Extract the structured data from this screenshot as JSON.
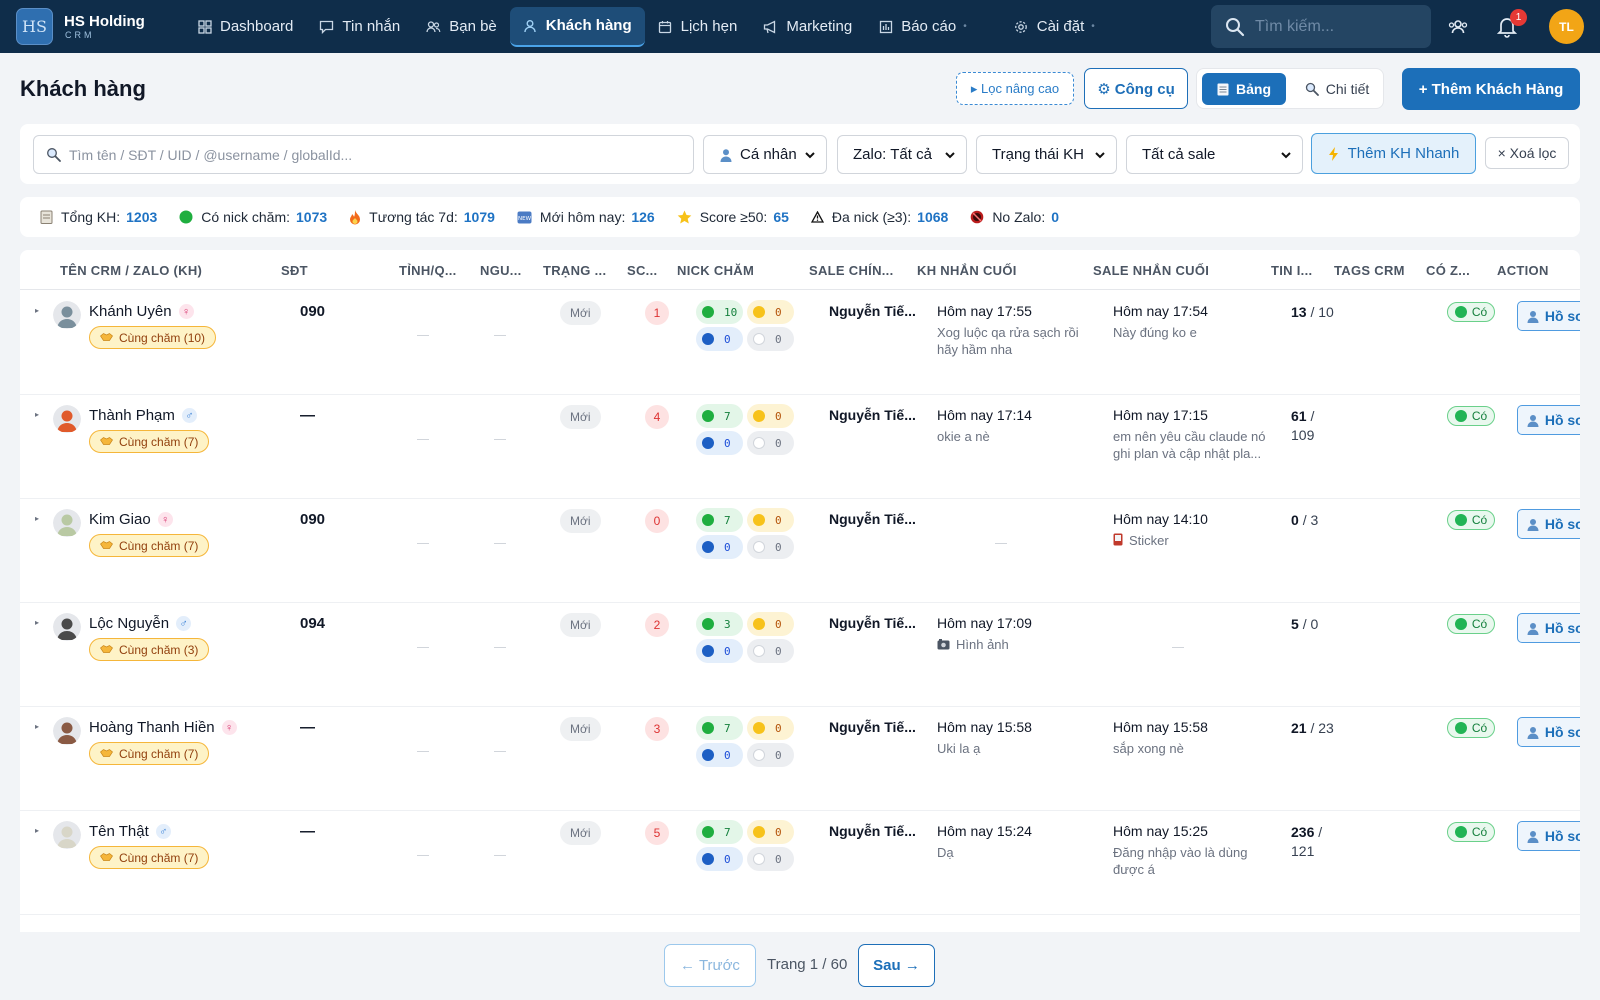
{
  "app": {
    "logo_mark": "HS",
    "name": "HS Holding",
    "sub": "CRM"
  },
  "nav": [
    {
      "label": "Dashboard",
      "icon": "grid-icon"
    },
    {
      "label": "Tin nhắn",
      "icon": "message-icon"
    },
    {
      "label": "Bạn bè",
      "icon": "friends-icon"
    },
    {
      "label": "Khách hàng",
      "icon": "user-icon",
      "active": true
    },
    {
      "label": "Lịch hẹn",
      "icon": "calendar-icon"
    },
    {
      "label": "Marketing",
      "icon": "megaphone-icon"
    },
    {
      "label": "Báo cáo",
      "icon": "report-icon"
    },
    {
      "label": "Cài đặt",
      "icon": "gear-icon"
    }
  ],
  "top": {
    "search_placeholder": "Tìm kiếm...",
    "notif_count": "1",
    "avatar_initials": "TL"
  },
  "page": {
    "title": "Khách hàng"
  },
  "header_actions": {
    "filter_label": "▸ Lọc nâng cao",
    "tools_label": "⚙ Công cụ",
    "view_table": "Bảng",
    "view_detail": "Chi tiết",
    "add_label": "+ Thêm Khách Hàng"
  },
  "filters": {
    "search_placeholder": "Tìm tên / SĐT / UID / @username / globalId...",
    "type": "Cá nhân",
    "zalo": "Zalo: Tất cả",
    "status": "Trạng thái KH",
    "sale": "Tất cả sale",
    "quick_add": "Thêm KH Nhanh",
    "clear": "× Xoá lọc"
  },
  "stats": [
    {
      "label": "Tổng KH:",
      "value": "1203",
      "icon": "clipboard-icon"
    },
    {
      "label": "Có nick chăm:",
      "value": "1073",
      "icon": "green-dot-icon"
    },
    {
      "label": "Tương tác 7d:",
      "value": "1079",
      "icon": "fire-icon"
    },
    {
      "label": "Mới hôm nay:",
      "value": "126",
      "icon": "new-icon"
    },
    {
      "label": "Score ≥50:",
      "value": "65",
      "icon": "star-icon"
    },
    {
      "label": "Đa nick (≥3):",
      "value": "1068",
      "icon": "warning-icon"
    },
    {
      "label": "No Zalo:",
      "value": "0",
      "icon": "no-entry-icon"
    }
  ],
  "columns": [
    "TÊN CRM / ZALO (KH)",
    "SĐT",
    "TỈNH/Q...",
    "NGU...",
    "TRẠNG ...",
    "SC...",
    "NICK CHĂM",
    "SALE CHÍN...",
    "KH NHẮN CUỐI",
    "SALE NHẮN CUỐI",
    "TIN I...",
    "TAGS CRM",
    "CÓ Z...",
    "ACTION"
  ],
  "rows": [
    {
      "name": "Khánh Uyên",
      "gender": "♀",
      "care": "Cùng chăm (10)",
      "phone": "090",
      "status": "Mới",
      "score": "1",
      "nick": [
        "10",
        "0",
        "0",
        "0"
      ],
      "sale": "Nguyễn Tiế...",
      "kh_time": "Hôm nay 17:55",
      "kh_msg": "Xog luộc qa rửa sạch rồi hãy hầm nha",
      "sale_time": "Hôm nay 17:54",
      "sale_msg": "Này đúng ko e",
      "tin_a": "13",
      "tin_b": "/ 10",
      "co": "Có",
      "action": "Hồ sơ"
    },
    {
      "name": "Thành Phạm",
      "gender": "♂",
      "care": "Cùng chăm (7)",
      "phone": "—",
      "status": "Mới",
      "score": "4",
      "nick": [
        "7",
        "0",
        "0",
        "0"
      ],
      "sale": "Nguyễn Tiế...",
      "kh_time": "Hôm nay 17:14",
      "kh_msg": "okie a nè",
      "sale_time": "Hôm nay 17:15",
      "sale_msg": "em nên yêu cầu claude nó ghi plan và cập nhật pla...",
      "tin_a": "61",
      "tin_b": "/ 109",
      "co": "Có",
      "action": "Hồ sơ"
    },
    {
      "name": "Kim Giao",
      "gender": "♀",
      "care": "Cùng chăm (7)",
      "phone": "090",
      "status": "Mới",
      "score": "0",
      "nick": [
        "7",
        "0",
        "0",
        "0"
      ],
      "sale": "Nguyễn Tiế...",
      "kh_time": "",
      "kh_msg": "",
      "sale_time": "Hôm nay 14:10",
      "sale_msg": "Sticker",
      "tin_a": "0",
      "tin_b": "/ 3",
      "co": "Có",
      "action": "Hồ sơ"
    },
    {
      "name": "Lộc Nguyễn",
      "gender": "♂",
      "care": "Cùng chăm (3)",
      "phone": "094",
      "status": "Mới",
      "score": "2",
      "nick": [
        "3",
        "0",
        "0",
        "0"
      ],
      "sale": "Nguyễn Tiế...",
      "kh_time": "Hôm nay 17:09",
      "kh_msg": "Hình ảnh",
      "sale_time": "",
      "sale_msg": "",
      "tin_a": "5",
      "tin_b": "/ 0",
      "co": "Có",
      "action": "Hồ sơ"
    },
    {
      "name": "Hoàng Thanh Hiền",
      "gender": "♀",
      "care": "Cùng chăm (7)",
      "phone": "—",
      "status": "Mới",
      "score": "3",
      "nick": [
        "7",
        "0",
        "0",
        "0"
      ],
      "sale": "Nguyễn Tiế...",
      "kh_time": "Hôm nay 15:58",
      "kh_msg": "Uki la ạ",
      "sale_time": "Hôm nay 15:58",
      "sale_msg": "sắp xong nè",
      "tin_a": "21",
      "tin_b": "/ 23",
      "co": "Có",
      "action": "Hồ sơ"
    },
    {
      "name": "Tên Thật",
      "gender": "♂",
      "care": "Cùng chăm (7)",
      "phone": "—",
      "status": "Mới",
      "score": "5",
      "nick": [
        "7",
        "0",
        "0",
        "0"
      ],
      "sale": "Nguyễn Tiế...",
      "kh_time": "Hôm nay 15:24",
      "kh_msg": "Dạ",
      "sale_time": "Hôm nay 15:25",
      "sale_msg": "Đăng nhập vào là dùng được á",
      "tin_a": "236",
      "tin_b": "/ 121",
      "co": "Có",
      "action": "Hồ sơ"
    }
  ],
  "pagination": {
    "prev": "← Trước",
    "info": "Trang 1 / 60",
    "next": "Sau →"
  },
  "colors": {
    "nav_bg": "#0f2d4a",
    "primary": "#1c6fb9",
    "accent": "#f2a516"
  }
}
